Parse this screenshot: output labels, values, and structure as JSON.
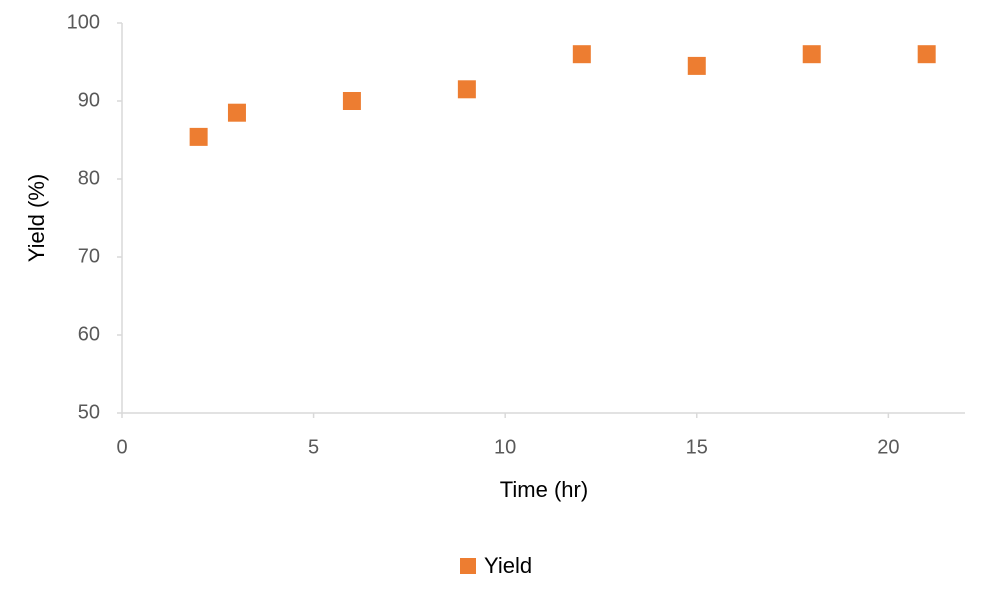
{
  "chart_data": {
    "type": "scatter",
    "x_label": "Time (hr)",
    "y_label": "Yield (%)",
    "series": [
      {
        "name": "Yield",
        "color": "#ed7d31",
        "x": [
          2,
          3,
          6,
          9,
          12,
          15,
          18,
          21
        ],
        "values": [
          85.4,
          88.5,
          90,
          91.5,
          96,
          94.5,
          96,
          96
        ]
      }
    ],
    "xlim": [
      0,
      22
    ],
    "xticks": [
      0,
      5,
      10,
      15,
      20
    ],
    "ylim": [
      50,
      100
    ],
    "yticks": [
      50,
      60,
      70,
      80,
      90,
      100
    ],
    "grid": false,
    "legend": "bottom",
    "marker": "square"
  }
}
